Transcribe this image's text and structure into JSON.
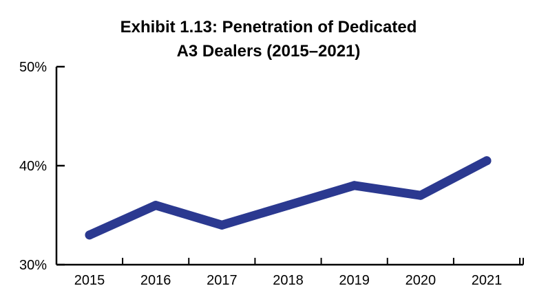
{
  "chart_data": {
    "type": "line",
    "title": "Exhibit 1.13: Penetration of Dedicated",
    "subtitle": "A3 Dealers (2015–2021)",
    "x": [
      "2015",
      "2016",
      "2017",
      "2018",
      "2019",
      "2020",
      "2021"
    ],
    "series": [
      {
        "values": [
          33,
          36,
          34,
          36,
          38,
          37,
          40.5
        ],
        "color": "#2B3990"
      }
    ],
    "ylim": [
      30,
      50
    ],
    "yticks": [
      30,
      40,
      50
    ],
    "ytick_labels": [
      "30%",
      "40%",
      "50%"
    ],
    "xlabel": "",
    "ylabel": "",
    "grid": false,
    "legend": "none"
  }
}
